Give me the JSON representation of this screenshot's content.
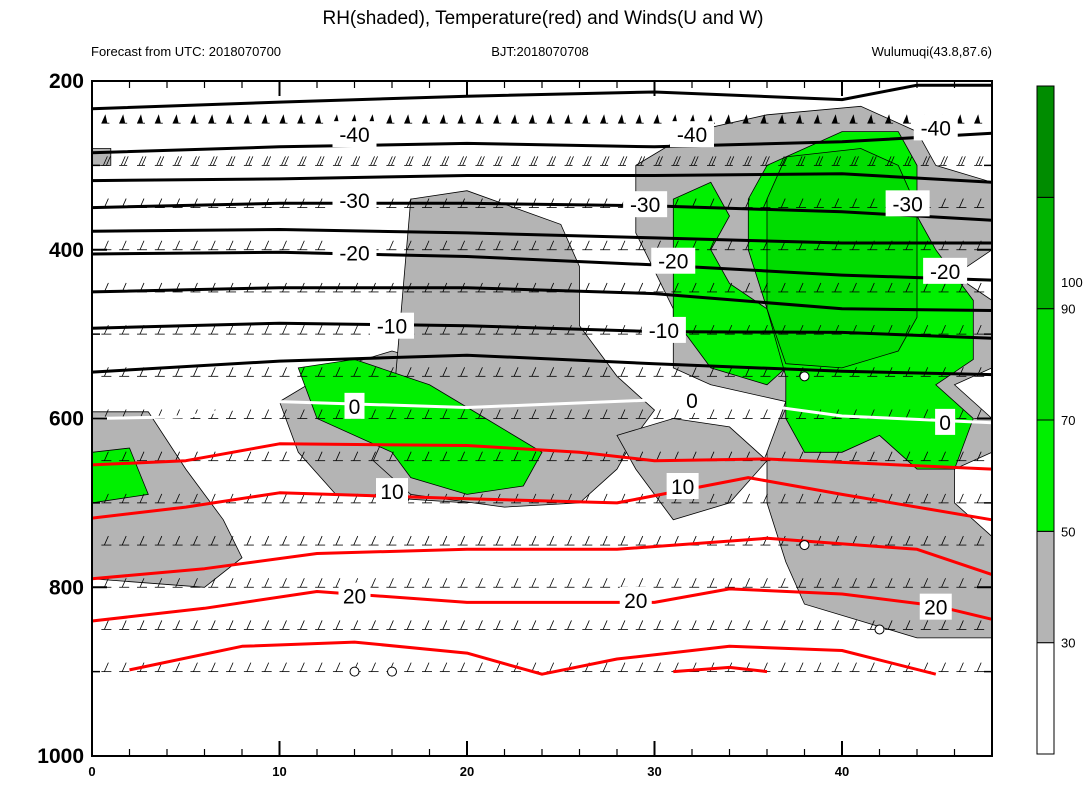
{
  "chart_data": {
    "type": "contour",
    "title": "RH(shaded), Temperature(red) and Winds(U and W)",
    "left_subtitle": "Forecast from UTC: 2018070700",
    "center_subtitle": "BJT:2018070708",
    "right_subtitle": "Wulumuqi(43.8,87.6)",
    "x_ticks": [
      0,
      10,
      20,
      30,
      40
    ],
    "x_minor_every": 2,
    "xlim": [
      0,
      48
    ],
    "y_ticks": [
      200,
      400,
      600,
      800,
      1000
    ],
    "y_minor_every": 100,
    "ylim": [
      1000,
      200
    ],
    "colorbar": {
      "levels": [
        30,
        50,
        70,
        90,
        100
      ],
      "colors": [
        "#ffffff",
        "#b4b4b4",
        "#00f000",
        "#00dc00",
        "#00b400",
        "#008c00"
      ]
    },
    "rh_regions": [
      {
        "level": "30-50",
        "points": [
          [
            0,
            592
          ],
          [
            3,
            592
          ],
          [
            5,
            660
          ],
          [
            7,
            720
          ],
          [
            8,
            765
          ],
          [
            6,
            800
          ],
          [
            0,
            790
          ]
        ]
      },
      {
        "level": "30-50",
        "points": [
          [
            10,
            580
          ],
          [
            13,
            540
          ],
          [
            16,
            520
          ],
          [
            20,
            545
          ],
          [
            24,
            580
          ],
          [
            27,
            625
          ],
          [
            26,
            680
          ],
          [
            20,
            700
          ],
          [
            13,
            690
          ],
          [
            11,
            640
          ]
        ]
      },
      {
        "level": "30-50",
        "points": [
          [
            17,
            340
          ],
          [
            20,
            330
          ],
          [
            25,
            370
          ],
          [
            26,
            420
          ],
          [
            26,
            490
          ],
          [
            28,
            550
          ],
          [
            30,
            590
          ],
          [
            29,
            620
          ],
          [
            28,
            660
          ],
          [
            26,
            700
          ],
          [
            22,
            705
          ],
          [
            17,
            690
          ],
          [
            15,
            650
          ],
          [
            16,
            600
          ]
        ]
      },
      {
        "level": "30-50",
        "points": [
          [
            28,
            620
          ],
          [
            31,
            600
          ],
          [
            34,
            610
          ],
          [
            36,
            650
          ],
          [
            34,
            700
          ],
          [
            31,
            720
          ],
          [
            30,
            690
          ],
          [
            29,
            660
          ]
        ]
      },
      {
        "level": "30-50",
        "points": [
          [
            29,
            300
          ],
          [
            32,
            260
          ],
          [
            36,
            240
          ],
          [
            41,
            230
          ],
          [
            44,
            260
          ],
          [
            45,
            300
          ],
          [
            48,
            320
          ],
          [
            48,
            400
          ],
          [
            46,
            430
          ],
          [
            48,
            460
          ],
          [
            48,
            540
          ],
          [
            46,
            560
          ],
          [
            48,
            600
          ],
          [
            48,
            640
          ],
          [
            46,
            660
          ],
          [
            46,
            700
          ],
          [
            48,
            740
          ],
          [
            48,
            860
          ],
          [
            44,
            860
          ],
          [
            41,
            840
          ],
          [
            38,
            820
          ],
          [
            37,
            770
          ],
          [
            36,
            700
          ],
          [
            36,
            640
          ],
          [
            37,
            580
          ],
          [
            33,
            560
          ],
          [
            31,
            540
          ],
          [
            31,
            470
          ],
          [
            29,
            380
          ]
        ]
      },
      {
        "level": "30-50",
        "points": [
          [
            0,
            280
          ],
          [
            1,
            280
          ],
          [
            1,
            300
          ],
          [
            0,
            300
          ]
        ]
      },
      {
        "level": "50-70",
        "points": [
          [
            11,
            540
          ],
          [
            14,
            530
          ],
          [
            18,
            560
          ],
          [
            21,
            600
          ],
          [
            24,
            640
          ],
          [
            23,
            680
          ],
          [
            20,
            690
          ],
          [
            17,
            670
          ],
          [
            16,
            640
          ],
          [
            12,
            600
          ]
        ]
      },
      {
        "level": "50-70",
        "points": [
          [
            0,
            640
          ],
          [
            2,
            635
          ],
          [
            3,
            690
          ],
          [
            0,
            700
          ]
        ]
      },
      {
        "level": "50-70",
        "points": [
          [
            31,
            340
          ],
          [
            33,
            320
          ],
          [
            34,
            360
          ],
          [
            33,
            400
          ],
          [
            34,
            440
          ],
          [
            36,
            470
          ],
          [
            37,
            540
          ],
          [
            36,
            560
          ],
          [
            33,
            540
          ],
          [
            31,
            480
          ]
        ]
      },
      {
        "level": "50-70",
        "points": [
          [
            36,
            300
          ],
          [
            40,
            260
          ],
          [
            43,
            260
          ],
          [
            44,
            300
          ],
          [
            44,
            360
          ],
          [
            45,
            400
          ],
          [
            47,
            460
          ],
          [
            47,
            530
          ],
          [
            45,
            560
          ],
          [
            47,
            600
          ],
          [
            46,
            660
          ],
          [
            44,
            660
          ],
          [
            42,
            620
          ],
          [
            40,
            640
          ],
          [
            38,
            640
          ],
          [
            37,
            600
          ],
          [
            37,
            550
          ],
          [
            36,
            470
          ],
          [
            35,
            400
          ],
          [
            35,
            340
          ]
        ]
      },
      {
        "level": "70-90",
        "points": [
          [
            37,
            290
          ],
          [
            41,
            280
          ],
          [
            43,
            300
          ],
          [
            44,
            350
          ],
          [
            44,
            420
          ],
          [
            44,
            480
          ],
          [
            43,
            520
          ],
          [
            40,
            540
          ],
          [
            37,
            535
          ],
          [
            36,
            470
          ],
          [
            36,
            400
          ],
          [
            36,
            340
          ]
        ]
      }
    ],
    "temperature_contours": [
      {
        "label": "-40",
        "color": "#000000",
        "points": [
          [
            0,
            233
          ],
          [
            10,
            225
          ],
          [
            20,
            218
          ],
          [
            30,
            213
          ],
          [
            40,
            222
          ],
          [
            44,
            205
          ],
          [
            48,
            205
          ]
        ]
      },
      {
        "label": "-40",
        "color": "#000000",
        "points": [
          [
            0,
            285
          ],
          [
            10,
            278
          ],
          [
            20,
            274
          ],
          [
            30,
            278
          ],
          [
            40,
            272
          ],
          [
            48,
            262
          ]
        ]
      },
      {
        "label": "-30",
        "color": "#000000",
        "points": [
          [
            0,
            318
          ],
          [
            10,
            316
          ],
          [
            20,
            312
          ],
          [
            30,
            312
          ],
          [
            40,
            310
          ],
          [
            48,
            320
          ]
        ]
      },
      {
        "label": "-30",
        "color": "#000000",
        "points": [
          [
            0,
            350
          ],
          [
            10,
            345
          ],
          [
            20,
            345
          ],
          [
            30,
            348
          ],
          [
            40,
            355
          ],
          [
            48,
            365
          ]
        ]
      },
      {
        "label": "-20",
        "color": "#000000",
        "points": [
          [
            0,
            378
          ],
          [
            10,
            376
          ],
          [
            20,
            380
          ],
          [
            30,
            386
          ],
          [
            40,
            392
          ],
          [
            48,
            392
          ]
        ]
      },
      {
        "label": "-20",
        "color": "#000000",
        "points": [
          [
            0,
            405
          ],
          [
            10,
            403
          ],
          [
            20,
            408
          ],
          [
            30,
            418
          ],
          [
            40,
            430
          ],
          [
            48,
            436
          ]
        ]
      },
      {
        "label": "-20",
        "color": "#000000",
        "points": [
          [
            0,
            450
          ],
          [
            10,
            445
          ],
          [
            20,
            445
          ],
          [
            30,
            452
          ],
          [
            40,
            470
          ],
          [
            48,
            472
          ]
        ]
      },
      {
        "label": "-10",
        "color": "#000000",
        "points": [
          [
            0,
            493
          ],
          [
            10,
            487
          ],
          [
            20,
            490
          ],
          [
            30,
            497
          ],
          [
            40,
            498
          ],
          [
            48,
            505
          ]
        ]
      },
      {
        "label": "-10",
        "color": "#000000",
        "points": [
          [
            0,
            545
          ],
          [
            10,
            532
          ],
          [
            20,
            525
          ],
          [
            30,
            535
          ],
          [
            40,
            544
          ],
          [
            48,
            548
          ]
        ]
      },
      {
        "label": "0",
        "color": "#ffffff",
        "points": [
          [
            0,
            600
          ],
          [
            5,
            598
          ],
          [
            10,
            580
          ],
          [
            20,
            587
          ],
          [
            30,
            578
          ],
          [
            36,
            585
          ],
          [
            40,
            597
          ],
          [
            48,
            605
          ]
        ]
      },
      {
        "label": "10",
        "color": "#ff0000",
        "points": [
          [
            0,
            655
          ],
          [
            5,
            650
          ],
          [
            10,
            630
          ],
          [
            20,
            632
          ],
          [
            26,
            640
          ],
          [
            30,
            650
          ],
          [
            36,
            648
          ],
          [
            40,
            652
          ],
          [
            48,
            660
          ]
        ]
      },
      {
        "label": "10",
        "color": "#ff0000",
        "points": [
          [
            0,
            718
          ],
          [
            5,
            705
          ],
          [
            10,
            688
          ],
          [
            20,
            695
          ],
          [
            28,
            700
          ],
          [
            35,
            670
          ],
          [
            40,
            690
          ],
          [
            48,
            720
          ]
        ]
      },
      {
        "label": "20",
        "color": "#ff0000",
        "points": [
          [
            0,
            790
          ],
          [
            6,
            778
          ],
          [
            12,
            760
          ],
          [
            20,
            755
          ],
          [
            28,
            755
          ],
          [
            36,
            742
          ],
          [
            44,
            755
          ],
          [
            48,
            785
          ]
        ]
      },
      {
        "label": "20",
        "color": "#ff0000",
        "points": [
          [
            0,
            840
          ],
          [
            6,
            825
          ],
          [
            12,
            805
          ],
          [
            20,
            818
          ],
          [
            30,
            818
          ],
          [
            34,
            802
          ],
          [
            40,
            808
          ],
          [
            45,
            822
          ],
          [
            48,
            838
          ]
        ]
      },
      {
        "label": "20",
        "color": "#ff0000",
        "points": [
          [
            2,
            898
          ],
          [
            8,
            870
          ],
          [
            14,
            865
          ],
          [
            20,
            878
          ],
          [
            24,
            903
          ],
          [
            28,
            885
          ],
          [
            34,
            870
          ],
          [
            40,
            875
          ],
          [
            45,
            903
          ]
        ]
      },
      {
        "label": "",
        "color": "#ff0000",
        "points": [
          [
            31,
            900
          ],
          [
            34,
            895
          ],
          [
            36,
            900
          ]
        ]
      }
    ],
    "contour_labels": [
      {
        "text": "-40",
        "x": 14,
        "y": 263
      },
      {
        "text": "-40",
        "x": 32,
        "y": 263
      },
      {
        "text": "-40",
        "x": 45,
        "y": 255
      },
      {
        "text": "-30",
        "x": 14,
        "y": 341
      },
      {
        "text": "-30",
        "x": 29.5,
        "y": 346
      },
      {
        "text": "-30",
        "x": 43.5,
        "y": 345
      },
      {
        "text": "-20",
        "x": 14,
        "y": 403
      },
      {
        "text": "-20",
        "x": 31,
        "y": 413
      },
      {
        "text": "-20",
        "x": 45.5,
        "y": 425
      },
      {
        "text": "-10",
        "x": 16,
        "y": 490
      },
      {
        "text": "-10",
        "x": 30.5,
        "y": 495
      },
      {
        "text": "0",
        "x": 14,
        "y": 585
      },
      {
        "text": "0",
        "x": 32,
        "y": 578
      },
      {
        "text": "0",
        "x": 45.5,
        "y": 604
      },
      {
        "text": "10",
        "x": 16,
        "y": 686
      },
      {
        "text": "10",
        "x": 31.5,
        "y": 680
      },
      {
        "text": "20",
        "x": 14,
        "y": 810
      },
      {
        "text": "20",
        "x": 29,
        "y": 815
      },
      {
        "text": "20",
        "x": 45,
        "y": 823
      }
    ],
    "wind_levels": [
      250,
      300,
      350,
      400,
      450,
      500,
      550,
      600,
      650,
      700,
      750,
      800,
      850,
      900
    ],
    "calm_points": [
      [
        14,
        900
      ],
      [
        16,
        900
      ],
      [
        38,
        750
      ],
      [
        42,
        850
      ],
      [
        38,
        550
      ]
    ]
  }
}
